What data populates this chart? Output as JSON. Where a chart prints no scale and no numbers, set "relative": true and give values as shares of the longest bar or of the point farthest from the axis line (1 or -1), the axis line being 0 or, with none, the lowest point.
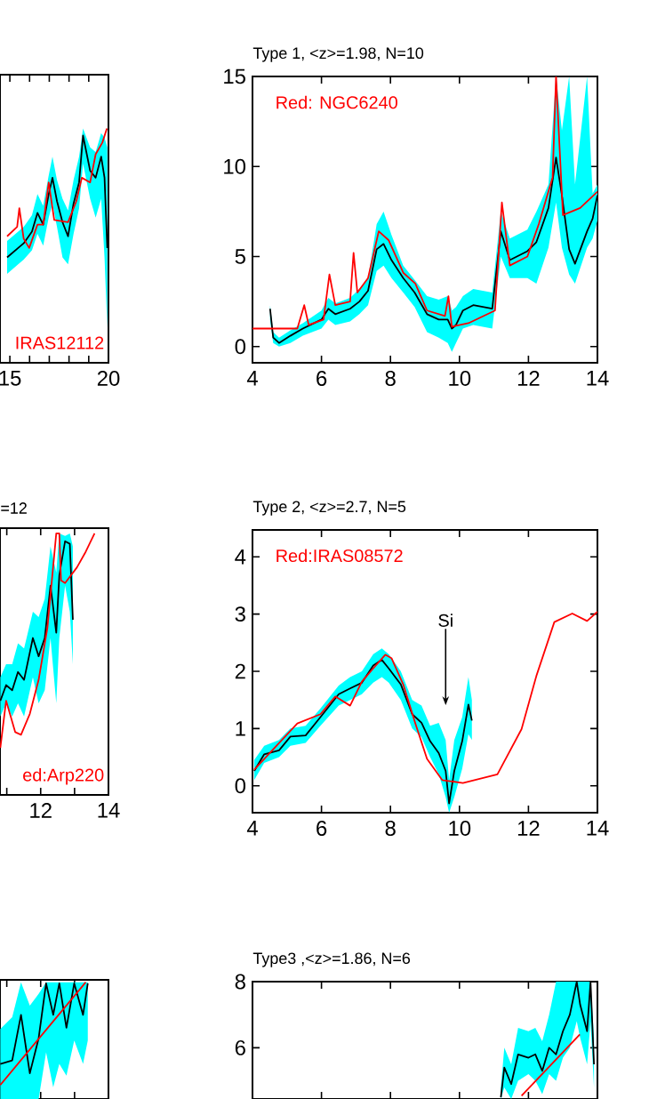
{
  "chart_data": [
    {
      "type": "line",
      "relative": true,
      "xlim": [
        14.5,
        20
      ],
      "xticks": [
        15,
        {
          "value": 16,
          "label": null
        },
        {
          "value": 17,
          "label": null
        },
        {
          "value": 18,
          "label": null
        },
        {
          "value": 19,
          "label": null
        },
        20
      ],
      "annotations": [
        "IRAS12112"
      ],
      "series": [
        {
          "color": "#000000",
          "x": [
            14.86,
            15.42,
            15.7,
            16.12,
            16.4,
            16.69,
            16.97,
            17.16,
            17.39,
            17.67,
            17.95,
            18.23,
            18.51,
            18.71,
            19.07,
            19.35,
            19.63,
            19.8,
            19.94
          ],
          "values": [
            0.45,
            0.49,
            0.51,
            0.56,
            0.64,
            0.59,
            0.72,
            0.79,
            0.69,
            0.6,
            0.54,
            0.68,
            0.77,
            0.97,
            0.82,
            0.79,
            0.88,
            0.79,
            0.49
          ],
          "lower": [
            0.38,
            0.42,
            0.44,
            0.48,
            0.55,
            0.5,
            0.62,
            0.68,
            0.58,
            0.45,
            0.42,
            0.55,
            0.66,
            0.85,
            0.7,
            0.62,
            0.7,
            0.45,
            0.15
          ],
          "upper": [
            0.52,
            0.56,
            0.58,
            0.63,
            0.72,
            0.67,
            0.8,
            0.88,
            0.78,
            0.7,
            0.65,
            0.78,
            0.88,
            1.0,
            0.92,
            0.9,
            0.98,
            0.96,
            0.92
          ]
        },
        {
          "color": "#ff0000",
          "x": [
            14.86,
            15.37,
            15.48,
            15.7,
            15.98,
            16.4,
            16.69,
            16.97,
            17.25,
            17.95,
            18.37,
            18.65,
            19.07,
            19.35,
            19.69,
            19.92
          ],
          "values": [
            0.54,
            0.58,
            0.66,
            0.53,
            0.49,
            0.59,
            0.59,
            0.77,
            0.61,
            0.6,
            0.69,
            0.79,
            0.77,
            0.89,
            0.94,
            1.0
          ]
        }
      ]
    },
    {
      "type": "line",
      "title": "Type 1, <z>=1.98, N=10",
      "xlim": [
        4,
        14
      ],
      "ylim": [
        -0.9,
        15
      ],
      "xticks": [
        4,
        6,
        8,
        10,
        12,
        14
      ],
      "yticks": [
        0,
        5,
        10,
        15
      ],
      "annotations": [
        "Red: NGC6240"
      ],
      "series": [
        {
          "color": "#000000",
          "x": [
            4.51,
            4.6,
            4.77,
            5.1,
            5.46,
            6.0,
            6.2,
            6.4,
            6.83,
            7.1,
            7.35,
            7.6,
            7.8,
            8.03,
            8.37,
            8.7,
            9.06,
            9.4,
            9.66,
            9.78,
            9.9,
            10.1,
            10.4,
            10.95,
            11.2,
            11.46,
            11.97,
            12.23,
            12.58,
            12.8,
            12.97,
            13.18,
            13.35,
            13.7,
            13.86,
            14
          ],
          "values": [
            2.1,
            0.5,
            0.2,
            0.6,
            1.0,
            1.5,
            2.1,
            1.8,
            2.1,
            2.5,
            3.1,
            5.4,
            5.7,
            4.8,
            3.8,
            3.0,
            1.8,
            1.5,
            1.5,
            1.0,
            1.2,
            2.0,
            2.3,
            2.1,
            6.4,
            4.8,
            5.3,
            5.8,
            7.7,
            10.5,
            8.4,
            5.4,
            4.6,
            6.4,
            7.1,
            8.4
          ],
          "lower": [
            1.5,
            0.2,
            0,
            0.2,
            0.6,
            1.0,
            1.5,
            1.2,
            1.4,
            1.8,
            2.3,
            4.2,
            4.5,
            3.8,
            3.0,
            2.2,
            0.8,
            0.5,
            0.2,
            -0.3,
            0.2,
            1.0,
            1.2,
            1.0,
            5.0,
            3.8,
            3.8,
            3.5,
            5.5,
            8.0,
            5.5,
            4.0,
            3.5,
            5.5,
            6.0,
            7.0
          ],
          "upper": [
            2.3,
            0.8,
            0.5,
            0.9,
            1.3,
            2.0,
            2.7,
            2.4,
            2.7,
            3.2,
            3.8,
            6.8,
            7.5,
            6.2,
            4.5,
            3.7,
            2.8,
            2.6,
            2.8,
            2.0,
            2.2,
            2.8,
            3.2,
            3.0,
            7.5,
            6.0,
            6.5,
            7.5,
            9.0,
            15,
            12,
            15,
            9,
            15,
            8.5,
            9.0
          ]
        },
        {
          "color": "#ff0000",
          "x": [
            4,
            5.3,
            5.5,
            5.63,
            6.06,
            6.23,
            6.4,
            6.83,
            6.93,
            7.04,
            7.35,
            7.66,
            7.95,
            8.37,
            8.72,
            9.06,
            9.58,
            9.68,
            9.78,
            10.26,
            11.03,
            11.23,
            11.46,
            11.97,
            12.3,
            12.7,
            12.8,
            13.0,
            13.5,
            14
          ],
          "values": [
            1.0,
            1.0,
            2.3,
            1.2,
            1.5,
            4.0,
            2.3,
            2.5,
            5.2,
            3.0,
            3.8,
            6.4,
            5.9,
            4.1,
            3.5,
            2.0,
            1.7,
            2.8,
            1.1,
            1.3,
            2.0,
            8.0,
            4.5,
            5.0,
            6.8,
            9.4,
            15,
            7.3,
            7.7,
            8.6
          ]
        }
      ]
    },
    {
      "type": "line",
      "relative": true,
      "title": "=12",
      "xlim": [
        10.8,
        14
      ],
      "xticks": [
        {
          "value": 11,
          "label": null
        },
        12,
        {
          "value": 13,
          "label": null
        },
        14
      ],
      "annotations": [
        "ed:Arp220"
      ],
      "series": [
        {
          "color": "#000000",
          "x": [
            10.81,
            10.98,
            11.16,
            11.33,
            11.51,
            11.77,
            11.94,
            12.12,
            12.29,
            12.46,
            12.55,
            12.72,
            12.86,
            12.95
          ],
          "values": [
            0.36,
            0.42,
            0.4,
            0.47,
            0.44,
            0.6,
            0.53,
            0.6,
            0.8,
            0.62,
            0.84,
            0.97,
            0.96,
            0.67
          ],
          "lower": [
            0.3,
            0.35,
            0.3,
            0.35,
            0.3,
            0.45,
            0.35,
            0.4,
            0.6,
            0.35,
            0.6,
            0.8,
            0.7,
            0.5
          ],
          "upper": [
            0.45,
            0.5,
            0.5,
            0.58,
            0.56,
            0.7,
            0.68,
            0.75,
            0.95,
            0.85,
            1.0,
            0.99,
            1.0,
            0.95
          ]
        },
        {
          "color": "#ff0000",
          "x": [
            10.81,
            10.98,
            11.25,
            11.42,
            11.68,
            11.94,
            12.2,
            12.46,
            12.55,
            12.6,
            12.72,
            13.07,
            13.33,
            13.59
          ],
          "values": [
            0.18,
            0.36,
            0.24,
            0.23,
            0.31,
            0.44,
            0.64,
            1.0,
            1.0,
            0.82,
            0.81,
            0.87,
            0.93,
            1.0
          ]
        }
      ]
    },
    {
      "type": "line",
      "title": "Type 2, <z>=2.7, N=5",
      "xlim": [
        4,
        14
      ],
      "ylim": [
        -0.47,
        4.47
      ],
      "xticks": [
        4,
        6,
        8,
        10,
        12,
        14
      ],
      "yticks": [
        0,
        1,
        2,
        3,
        4
      ],
      "annotations": [
        "Red:IRAS08572",
        "Si"
      ],
      "series": [
        {
          "color": "#000000",
          "x": [
            4.05,
            4.34,
            4.77,
            5.1,
            5.54,
            5.97,
            6.5,
            6.83,
            7.17,
            7.5,
            7.75,
            7.95,
            8.3,
            8.63,
            8.9,
            9.15,
            9.4,
            9.6,
            9.7,
            9.85,
            10.08,
            10.26,
            10.36
          ],
          "values": [
            0.26,
            0.55,
            0.62,
            0.86,
            0.88,
            1.2,
            1.6,
            1.7,
            1.8,
            2.1,
            2.2,
            2.05,
            1.77,
            1.25,
            1.1,
            0.78,
            0.57,
            0.26,
            -0.31,
            0.26,
            0.78,
            1.42,
            1.14
          ],
          "lower": [
            0.1,
            0.4,
            0.5,
            0.7,
            0.75,
            1.05,
            1.4,
            1.5,
            1.6,
            1.8,
            1.9,
            1.8,
            1.5,
            1.0,
            0.85,
            0.5,
            0.2,
            -0.2,
            -0.47,
            -0.2,
            0.3,
            0.9,
            0.8
          ],
          "upper": [
            0.45,
            0.7,
            0.8,
            1.0,
            1.05,
            1.35,
            1.75,
            1.9,
            2.0,
            2.3,
            2.4,
            2.3,
            2.0,
            1.5,
            1.4,
            1.05,
            1.1,
            0.8,
            0.1,
            0.8,
            1.2,
            1.9,
            1.5
          ]
        },
        {
          "color": "#ff0000",
          "x": [
            4.05,
            5.3,
            5.97,
            6.4,
            6.83,
            7.17,
            7.5,
            7.85,
            8.03,
            8.37,
            8.72,
            9.06,
            9.5,
            10.1,
            11.1,
            11.8,
            12.23,
            12.75,
            13.27,
            13.7,
            14
          ],
          "values": [
            0.28,
            1.09,
            1.25,
            1.56,
            1.4,
            1.82,
            2.05,
            2.29,
            2.23,
            1.77,
            1.09,
            0.47,
            0.1,
            0.05,
            0.2,
            0.99,
            1.92,
            2.86,
            3.01,
            2.88,
            3.04
          ]
        }
      ]
    },
    {
      "type": "line",
      "relative": true,
      "xlim": [
        10.8,
        14
      ],
      "tick_labels": false,
      "series": [
        {
          "color": "#000000",
          "x": [
            10.81,
            11.16,
            11.42,
            11.68,
            11.94,
            12.16,
            12.37,
            12.55,
            12.76,
            12.99,
            13.25,
            13.39
          ],
          "values": [
            0.3,
            0.33,
            0.72,
            0.22,
            0.52,
            0.99,
            0.72,
            0.99,
            0.61,
            0.99,
            0.72,
            0.99
          ],
          "lower": [
            0,
            0,
            0,
            0,
            0,
            0.4,
            0.1,
            0.3,
            0.2,
            0.5,
            0.3,
            0.5
          ],
          "upper": [
            0.6,
            0.7,
            1.0,
            0.8,
            0.9,
            1.0,
            1.0,
            1.0,
            1.0,
            1.0,
            1.0,
            1.0
          ]
        },
        {
          "color": "#ff0000",
          "x": [
            10.81,
            13.33
          ],
          "values": [
            0.12,
            1.0
          ]
        }
      ]
    },
    {
      "type": "line",
      "title": "Type3 ,<z>=1.86, N=6",
      "xlim": [
        4,
        14
      ],
      "ylim": [
        4.45,
        8
      ],
      "xticks": [
        4,
        6,
        8,
        10,
        12,
        14
      ],
      "yticks": [
        6,
        8
      ],
      "tick_labels": "y",
      "series": [
        {
          "color": "#000000",
          "x": [
            11.2,
            11.3,
            11.5,
            11.7,
            12.0,
            12.2,
            12.4,
            12.6,
            12.8,
            13.0,
            13.2,
            13.4,
            13.5,
            13.7,
            13.8,
            13.9
          ],
          "values": [
            4.5,
            5.4,
            4.9,
            5.8,
            5.7,
            5.8,
            5.3,
            6.0,
            5.8,
            6.5,
            7.0,
            8.0,
            7.3,
            6.5,
            8.0,
            5.5
          ],
          "lower": [
            4.45,
            4.8,
            4.45,
            5.0,
            5.2,
            5.0,
            4.6,
            5.2,
            5.0,
            5.7,
            6.0,
            6.8,
            6.3,
            5.5,
            6.8,
            4.8
          ],
          "upper": [
            4.8,
            6.0,
            5.5,
            6.6,
            6.5,
            6.6,
            6.2,
            7.0,
            8.0,
            8.0,
            8.0,
            8.0,
            8.0,
            8.0,
            8.0,
            6.3
          ]
        },
        {
          "color": "#ff0000",
          "x": [
            11.8,
            13.49
          ],
          "values": [
            4.55,
            6.4
          ]
        }
      ]
    }
  ]
}
